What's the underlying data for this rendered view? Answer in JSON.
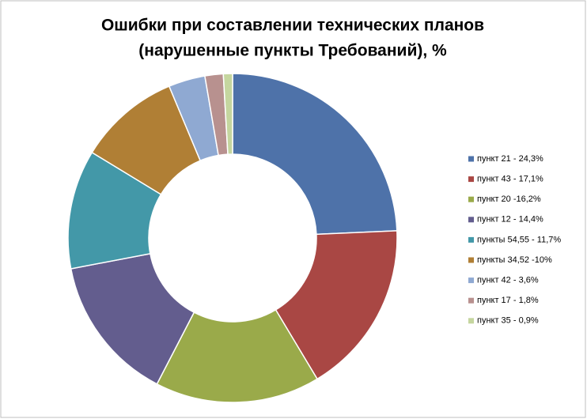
{
  "chart_data": {
    "type": "donut",
    "title": [
      "Ошибки при составлении технических планов",
      "(нарушенные пункты Требований), %"
    ],
    "categories": [
      "пункт 21 - 24,3%",
      "пункт 43 - 17,1%",
      "пункт 20 -16,2%",
      "пункт 12  - 14,4%",
      "пункты 54,55 - 11,7%",
      "пункты 34,52 -10%",
      "пункт 42 - 3,6%",
      "пункт 17 - 1,8%",
      "пункт 35 - 0,9%"
    ],
    "values": [
      24.3,
      17.1,
      16.2,
      14.4,
      11.7,
      10,
      3.6,
      1.8,
      0.9
    ],
    "colors": [
      "#4e72a9",
      "#a94744",
      "#9aaa4a",
      "#635d8e",
      "#4398a8",
      "#b07f35",
      "#8fa9d2",
      "#b8918f",
      "#c5d69f"
    ],
    "legend_position": "right"
  }
}
